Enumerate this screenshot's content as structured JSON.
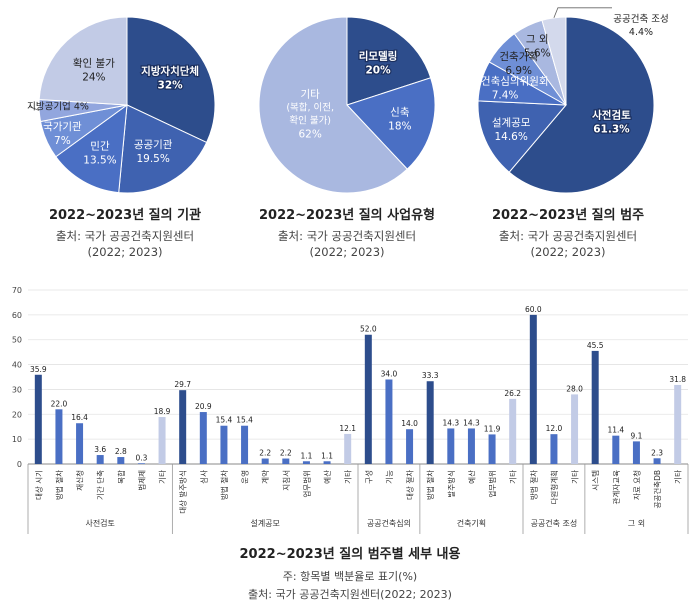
{
  "colors": {
    "dark": "#2d4d8c",
    "mid": "#4a6fc4",
    "light": "#6f8fd6",
    "pale": "#c2cbe6",
    "pale2": "#a9b8e0"
  },
  "pies": [
    {
      "title": "2022~2023년 질의 기관",
      "source_line1": "출처: 국가 공공건축지원센터",
      "source_line2": "(2022; 2023)",
      "slices": [
        {
          "name": "지방자치단체",
          "value": 32,
          "label": "32%",
          "color": "#2d4d8c"
        },
        {
          "name": "공공기관",
          "value": 19.5,
          "label": "19.5%",
          "color": "#3f62b0"
        },
        {
          "name": "민간",
          "value": 13.5,
          "label": "13.5%",
          "color": "#4a6fc4"
        },
        {
          "name": "국가기관",
          "value": 7,
          "label": "7%",
          "color": "#6f8fd6"
        },
        {
          "name": "지방공기업 4%",
          "value": 4,
          "label": "",
          "color": "#92a6de"
        },
        {
          "name": "확인 불가",
          "value": 24,
          "label": "24%",
          "color": "#c2cbe6"
        }
      ]
    },
    {
      "title": "2022~2023년 질의 사업유형",
      "source_line1": "출처: 국가 공공건축지원센터",
      "source_line2": "(2022; 2023)",
      "slices": [
        {
          "name": "리모델링",
          "value": 20,
          "label": "20%",
          "color": "#2d4d8c"
        },
        {
          "name": "신축",
          "value": 18,
          "label": "18%",
          "color": "#4a6fc4"
        },
        {
          "name": "기타",
          "sub1": "(복합, 이전,",
          "sub2": "확인 불가)",
          "value": 62,
          "label": "62%",
          "color": "#a9b8e0"
        }
      ]
    },
    {
      "title": "2022~2023년 질의 범주",
      "source_line1": "출처: 국가 공공건축지원센터",
      "source_line2": "(2022; 2023)",
      "slices": [
        {
          "name": "사전검토",
          "value": 61.3,
          "label": "61.3%",
          "color": "#2d4d8c"
        },
        {
          "name": "설계공모",
          "value": 14.6,
          "label": "14.6%",
          "color": "#3f62b0"
        },
        {
          "name": "공공건축심의위원회",
          "value": 7.4,
          "label": "7.4%",
          "color": "#4a6fc4"
        },
        {
          "name": "건축기획",
          "value": 6.9,
          "label": "6.9%",
          "color": "#6f8fd6"
        },
        {
          "name": "그 외",
          "value": 5.6,
          "label": "5.6%",
          "color": "#a9b8e0"
        },
        {
          "name": "공공건축 조성",
          "value": 4.4,
          "label": "4.4%",
          "color": "#d3d9ec"
        }
      ]
    }
  ],
  "chart_data": {
    "type": "bar",
    "title": "2022~2023년 질의 범주별 세부 내용",
    "note": "주: 항목별 백분율로 표기(%)",
    "source": "출처: 국가 공공건축지원센터(2022; 2023)",
    "ylim": [
      0,
      70
    ],
    "yticks": [
      "0",
      "10",
      "20",
      "30",
      "40",
      "50",
      "60",
      "70"
    ],
    "groups": [
      {
        "name": "사전검토",
        "bars": [
          {
            "label": "대상 시기",
            "value": 35.9,
            "text": "35.9",
            "shade": "dark"
          },
          {
            "label": "방법 절차",
            "value": 22.0,
            "text": "22.0",
            "shade": "mid"
          },
          {
            "label": "재신청",
            "value": 16.4,
            "text": "16.4",
            "shade": "mid"
          },
          {
            "label": "기간 단축",
            "value": 3.6,
            "text": "3.6",
            "shade": "mid"
          },
          {
            "label": "복합",
            "value": 2.8,
            "text": "2.8",
            "shade": "mid"
          },
          {
            "label": "법제제",
            "value": 0.3,
            "text": "0.3",
            "shade": "mid"
          },
          {
            "label": "기타",
            "value": 18.9,
            "text": "18.9",
            "shade": "pale"
          }
        ]
      },
      {
        "name": "설계공모",
        "bars": [
          {
            "label": "대상 발주방식",
            "value": 29.7,
            "text": "29.7",
            "shade": "dark"
          },
          {
            "label": "심사",
            "value": 20.9,
            "text": "20.9",
            "shade": "mid"
          },
          {
            "label": "방법 절차",
            "value": 15.4,
            "text": "15.4",
            "shade": "mid"
          },
          {
            "label": "운영",
            "value": 15.4,
            "text": "15.4",
            "shade": "mid"
          },
          {
            "label": "계약",
            "value": 2.2,
            "text": "2.2",
            "shade": "mid"
          },
          {
            "label": "지침서",
            "value": 2.2,
            "text": "2.2",
            "shade": "mid"
          },
          {
            "label": "업무범위",
            "value": 1.1,
            "text": "1.1",
            "shade": "mid"
          },
          {
            "label": "예산",
            "value": 1.1,
            "text": "1.1",
            "shade": "mid"
          },
          {
            "label": "기타",
            "value": 12.1,
            "text": "12.1",
            "shade": "pale"
          }
        ]
      },
      {
        "name": "공공건축심의",
        "bars": [
          {
            "label": "구성",
            "value": 52.0,
            "text": "52.0",
            "shade": "dark"
          },
          {
            "label": "기능",
            "value": 34.0,
            "text": "34.0",
            "shade": "mid"
          },
          {
            "label": "대상 절차",
            "value": 14.0,
            "text": "14.0",
            "shade": "mid"
          }
        ]
      },
      {
        "name": "건축기획",
        "bars": [
          {
            "label": "방법 절차",
            "value": 33.3,
            "text": "33.3",
            "shade": "dark"
          },
          {
            "label": "발주방식",
            "value": 14.3,
            "text": "14.3",
            "shade": "mid"
          },
          {
            "label": "예산",
            "value": 14.3,
            "text": "14.3",
            "shade": "mid"
          },
          {
            "label": "업무범위",
            "value": 11.9,
            "text": "11.9",
            "shade": "mid"
          },
          {
            "label": "기타",
            "value": 26.2,
            "text": "26.2",
            "shade": "pale"
          }
        ]
      },
      {
        "name": "공공건축 조성",
        "bars": [
          {
            "label": "방법 절차",
            "value": 60.0,
            "text": "60.0",
            "shade": "dark"
          },
          {
            "label": "다원형계획",
            "value": 12.0,
            "text": "12.0",
            "shade": "mid"
          },
          {
            "label": "기타",
            "value": 28.0,
            "text": "28.0",
            "shade": "pale"
          }
        ]
      },
      {
        "name": "그 외",
        "bars": [
          {
            "label": "시스템",
            "value": 45.5,
            "text": "45.5",
            "shade": "dark"
          },
          {
            "label": "관계자교육",
            "value": 11.4,
            "text": "11.4",
            "shade": "mid"
          },
          {
            "label": "자료 요청",
            "value": 9.1,
            "text": "9.1",
            "shade": "mid"
          },
          {
            "label": "공공건축DB",
            "value": 2.3,
            "text": "2.3",
            "shade": "mid"
          },
          {
            "label": "기타",
            "value": 31.8,
            "text": "31.8",
            "shade": "pale"
          }
        ]
      }
    ]
  }
}
